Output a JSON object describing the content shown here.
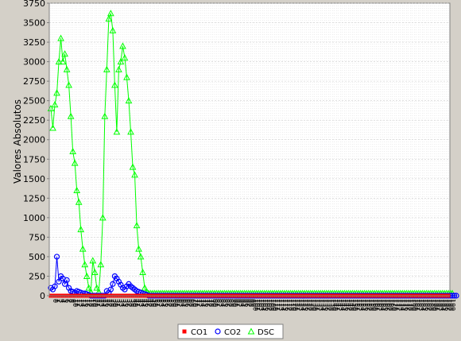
{
  "chart_data": {
    "type": "line",
    "ylabel": "Valores Absolutos",
    "xlabel": "",
    "ylim": [
      0,
      3750
    ],
    "yticks": [
      0,
      250,
      500,
      750,
      1000,
      1250,
      1500,
      1750,
      2000,
      2250,
      2500,
      2750,
      3000,
      3250,
      3500,
      3750
    ],
    "grid": true,
    "legend_position": "bottom",
    "x_count": 200,
    "series": [
      {
        "name": "CO1",
        "color": "#ff0000",
        "marker": "square",
        "values": [
          0,
          0,
          0,
          0,
          0,
          0,
          0,
          0,
          0,
          0,
          0,
          0,
          0,
          0,
          0,
          0,
          0,
          0,
          0,
          0,
          0,
          0,
          0,
          0,
          0,
          0,
          0,
          0,
          0,
          0,
          0,
          0,
          0,
          0,
          0,
          0,
          0,
          0,
          0,
          0,
          0,
          0,
          0,
          0,
          0,
          0,
          0,
          0,
          0,
          0,
          0,
          0,
          0,
          0,
          0,
          0,
          0,
          0,
          0,
          0,
          0,
          0,
          0,
          0,
          0,
          0,
          0,
          0,
          0,
          0,
          0,
          0,
          0,
          0,
          0,
          0,
          0,
          0,
          0,
          0,
          0,
          0,
          0,
          0,
          0,
          0,
          0,
          0,
          0,
          0,
          0,
          0,
          0,
          0,
          0,
          0,
          0,
          0,
          0,
          0,
          0,
          0,
          0,
          0,
          0,
          0,
          0,
          0,
          0,
          0,
          0,
          0,
          0,
          0,
          0,
          0,
          0,
          0,
          0,
          0,
          0,
          0,
          0,
          0,
          0,
          0,
          0,
          0,
          0,
          0,
          0,
          0,
          0,
          0,
          0,
          0,
          0,
          0,
          0,
          0,
          0,
          0,
          0,
          0,
          0,
          0,
          0,
          0,
          0,
          0,
          0,
          0,
          0,
          0,
          0,
          0,
          0,
          0,
          0,
          0,
          0,
          0,
          0,
          0,
          0,
          0,
          0,
          0,
          0,
          0,
          0,
          0,
          0,
          0,
          0,
          0,
          0,
          0,
          0,
          0,
          0,
          0,
          0,
          0,
          0,
          0,
          0,
          0,
          0,
          0,
          0,
          0,
          0,
          0,
          0,
          0,
          0,
          0,
          0,
          0
        ]
      },
      {
        "name": "CO2",
        "color": "#0000ff",
        "marker": "circle",
        "values": [
          100,
          80,
          120,
          500,
          180,
          250,
          220,
          150,
          200,
          100,
          60,
          50,
          40,
          60,
          50,
          40,
          30,
          30,
          20,
          10,
          0,
          0,
          0,
          0,
          0,
          0,
          0,
          0,
          60,
          40,
          80,
          150,
          250,
          220,
          180,
          140,
          100,
          80,
          120,
          150,
          120,
          100,
          80,
          60,
          50,
          40,
          30,
          20,
          10,
          0,
          0,
          0,
          0,
          0,
          0,
          0,
          0,
          0,
          0,
          0,
          0,
          0,
          0,
          0,
          0,
          0,
          0,
          0,
          0,
          0,
          0,
          0,
          0,
          0,
          0,
          0,
          0,
          0,
          0,
          0,
          0,
          0,
          0,
          0,
          0,
          0,
          0,
          0,
          0,
          0,
          0,
          0,
          0,
          0,
          0,
          0,
          0,
          0,
          0,
          0,
          0,
          0,
          0,
          0,
          0,
          0,
          0,
          0,
          0,
          0,
          0,
          0,
          0,
          0,
          0,
          0,
          0,
          0,
          0,
          0,
          0,
          0,
          0,
          0,
          0,
          0,
          0,
          0,
          0,
          0,
          0,
          0,
          0,
          0,
          0,
          0,
          0,
          0,
          0,
          0,
          0,
          0,
          0,
          0,
          0,
          0,
          0,
          0,
          0,
          0,
          0,
          0,
          0,
          0,
          0,
          0,
          0,
          0,
          0,
          0,
          0,
          0,
          0,
          0,
          0,
          0,
          0,
          0,
          0,
          0,
          0,
          0,
          0,
          0,
          0,
          0,
          0,
          0,
          0,
          0,
          0,
          0,
          0,
          0,
          0,
          0,
          0,
          0,
          0,
          0,
          0,
          0,
          0,
          0,
          0,
          0,
          0,
          0,
          0,
          0,
          0,
          0,
          0,
          0
        ]
      },
      {
        "name": "DSC",
        "color": "#00ff00",
        "marker": "triangle",
        "values": [
          2400,
          2150,
          2450,
          2600,
          3000,
          3300,
          3000,
          3100,
          2900,
          2700,
          2300,
          1850,
          1700,
          1350,
          1200,
          850,
          600,
          400,
          250,
          100,
          50,
          450,
          300,
          100,
          50,
          400,
          1000,
          2300,
          2900,
          3550,
          3620,
          3400,
          2700,
          2100,
          2900,
          3000,
          3200,
          3050,
          2800,
          2500,
          2100,
          1650,
          1550,
          900,
          600,
          500,
          300,
          100,
          50,
          30,
          30,
          30,
          30,
          30,
          30,
          30,
          30,
          30,
          30,
          30,
          30,
          30,
          30,
          30,
          30,
          30,
          30,
          30,
          30,
          30,
          30,
          30,
          30,
          30,
          30,
          30,
          30,
          30,
          30,
          30,
          30,
          30,
          30,
          30,
          30,
          30,
          30,
          30,
          30,
          30,
          30,
          30,
          30,
          30,
          30,
          30,
          30,
          30,
          30,
          30,
          30,
          30,
          30,
          30,
          30,
          30,
          30,
          30,
          30,
          30,
          30,
          30,
          30,
          30,
          30,
          30,
          30,
          30,
          30,
          30,
          30,
          30,
          30,
          30,
          30,
          30,
          30,
          30,
          30,
          30,
          30,
          30,
          30,
          30,
          30,
          30,
          30,
          30,
          30,
          30,
          30,
          30,
          30,
          30,
          30,
          30,
          30,
          30,
          30,
          30,
          30,
          30,
          30,
          30,
          30,
          30,
          30,
          30,
          30,
          30,
          30,
          30,
          30,
          30,
          30,
          30,
          30,
          30,
          30,
          30,
          30,
          30,
          30,
          30,
          30,
          30,
          30,
          30,
          30,
          30,
          30,
          30,
          30,
          30,
          30,
          30,
          30,
          30,
          30,
          30,
          30,
          30,
          30,
          30,
          30,
          30,
          30,
          30,
          30,
          30,
          30,
          30
        ]
      }
    ]
  }
}
